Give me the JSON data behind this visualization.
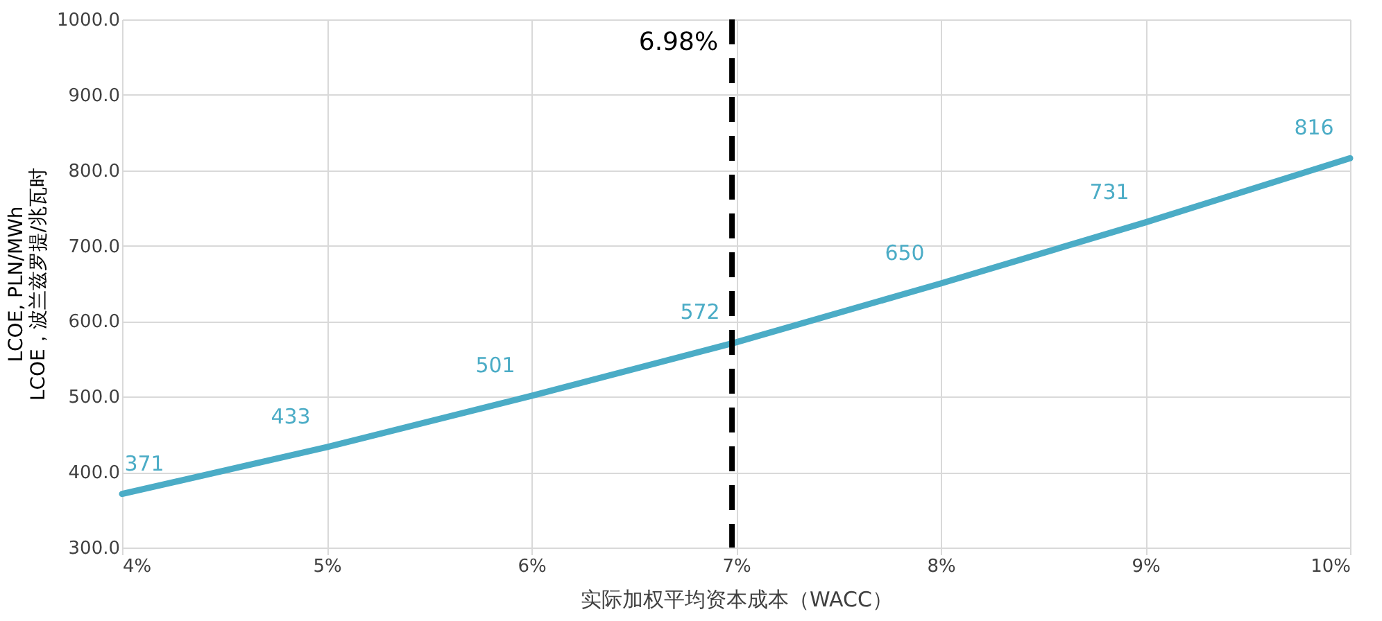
{
  "chart_data": {
    "type": "line",
    "xlabel": "实际加权平均资本成本（WACC）",
    "ylabel": "LCOE, PLN/MWh\nLCOE，波兰兹罗提/兆瓦时",
    "x": [
      4,
      5,
      6,
      7,
      8,
      9,
      10
    ],
    "series": [
      {
        "color": "#4bacc6",
        "values": [
          371,
          433,
          501,
          572,
          650,
          731,
          816
        ]
      }
    ],
    "data_labels": true,
    "xlim": [
      4,
      10
    ],
    "xticks": [
      {
        "value": 4,
        "label": "4%"
      },
      {
        "value": 5,
        "label": "5%"
      },
      {
        "value": 6,
        "label": "6%"
      },
      {
        "value": 7,
        "label": "7%"
      },
      {
        "value": 8,
        "label": "8%"
      },
      {
        "value": 9,
        "label": "9%"
      },
      {
        "value": 10,
        "label": "10%"
      }
    ],
    "ylim": [
      300,
      1000
    ],
    "yticks": [
      {
        "value": 300,
        "label": "300.0"
      },
      {
        "value": 400,
        "label": "400.0"
      },
      {
        "value": 500,
        "label": "500.0"
      },
      {
        "value": 600,
        "label": "600.0"
      },
      {
        "value": 700,
        "label": "700.0"
      },
      {
        "value": 800,
        "label": "800.0"
      },
      {
        "value": 900,
        "label": "900.0"
      },
      {
        "value": 1000,
        "label": "1000.0"
      }
    ],
    "ref_lines": [
      {
        "axis": "x",
        "value": 6.98,
        "label": "6.98%",
        "color": "#000000",
        "line_style": "dashed"
      }
    ],
    "grid": true,
    "marker": "none",
    "line_style": "solid"
  }
}
